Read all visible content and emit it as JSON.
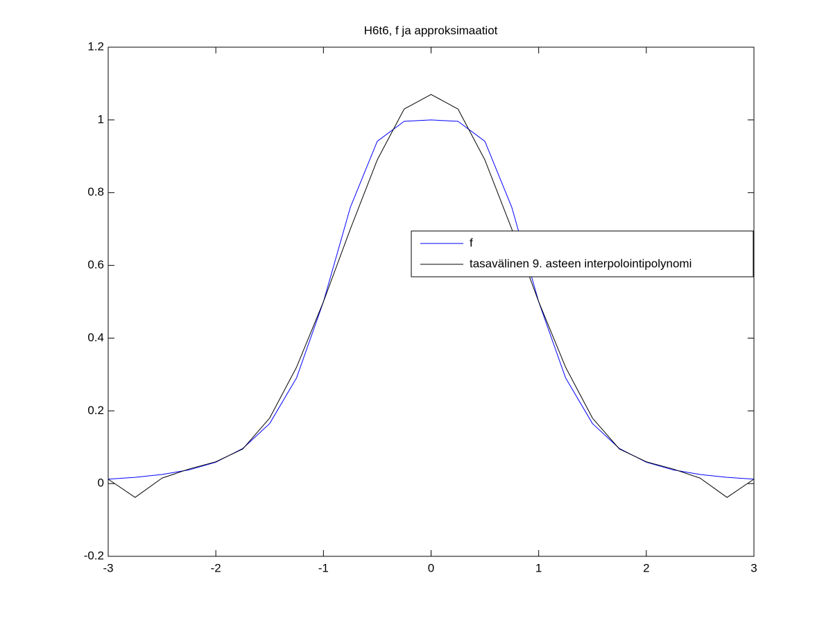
{
  "chart_data": {
    "type": "line",
    "title": "H6t6, f ja approksimaatiot",
    "x": [
      -3,
      -2.75,
      -2.5,
      -2.25,
      -2,
      -1.75,
      -1.5,
      -1.25,
      -1,
      -0.75,
      -0.5,
      -0.25,
      0,
      0.25,
      0.5,
      0.75,
      1,
      1.25,
      1.5,
      1.75,
      2,
      2.25,
      2.5,
      2.75,
      3
    ],
    "series": [
      {
        "name": "f",
        "color": "#0000ff",
        "values": [
          0.0122,
          0.0172,
          0.025,
          0.0376,
          0.0588,
          0.0964,
          0.1649,
          0.2906,
          0.5,
          0.7597,
          0.9412,
          0.9961,
          1,
          0.9961,
          0.9412,
          0.7597,
          0.5,
          0.2906,
          0.1649,
          0.0964,
          0.0588,
          0.0376,
          0.025,
          0.0172,
          0.0122
        ]
      },
      {
        "name": "tasavälinen 9. asteen interpolointipolynomi",
        "color": "#000000",
        "values": [
          0.0122,
          -0.038,
          0.015,
          0.04,
          0.06,
          0.095,
          0.18,
          0.32,
          0.5,
          0.7,
          0.89,
          1.03,
          1.07,
          1.03,
          0.89,
          0.7,
          0.5,
          0.32,
          0.18,
          0.095,
          0.06,
          0.04,
          0.015,
          -0.038,
          0.0122
        ]
      }
    ],
    "xlim": [
      -3,
      3
    ],
    "xticks": [
      -3,
      -2,
      -1,
      0,
      1,
      2,
      3
    ],
    "ylim": [
      -0.2,
      1.2
    ],
    "yticks": [
      -0.2,
      0,
      0.2,
      0.4,
      0.6,
      0.8,
      1,
      1.2
    ],
    "grid": false,
    "legend": "east"
  }
}
